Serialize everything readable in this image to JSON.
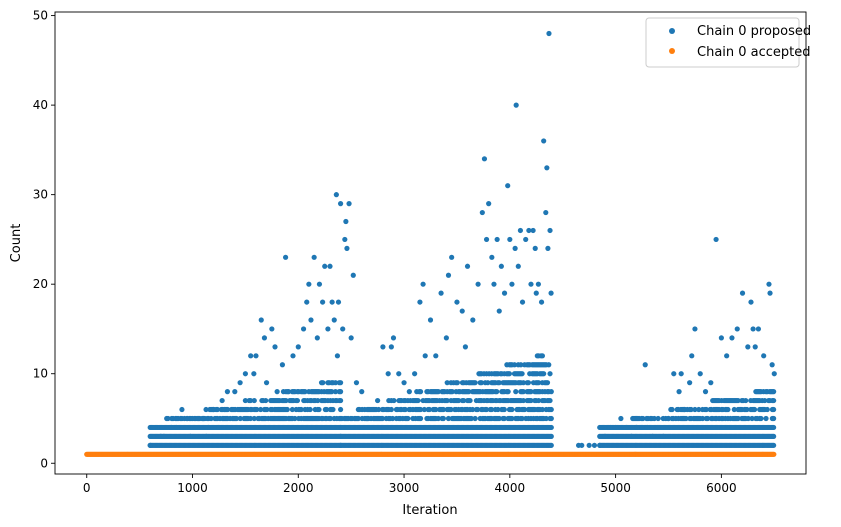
{
  "chart_data": {
    "type": "scatter",
    "xlabel": "Iteration",
    "ylabel": "Count",
    "xlim": [
      -300,
      6800
    ],
    "ylim": [
      -1.2,
      50.4
    ],
    "xticks": [
      0,
      1000,
      2000,
      3000,
      4000,
      5000,
      6000
    ],
    "yticks": [
      0,
      10,
      20,
      30,
      40,
      50
    ],
    "grid": false,
    "legend_position": "top-right",
    "series": [
      {
        "name": "Chain 0 proposed",
        "color": "#1f77b4",
        "points": [
          [
            600,
            2
          ],
          [
            700,
            3
          ],
          [
            730,
            3
          ],
          [
            800,
            4
          ],
          [
            850,
            4
          ],
          [
            900,
            6
          ],
          [
            950,
            5
          ],
          [
            980,
            3
          ],
          [
            1000,
            5
          ],
          [
            1050,
            5
          ],
          [
            1100,
            5
          ],
          [
            1130,
            3
          ],
          [
            1150,
            4
          ],
          [
            1200,
            6
          ],
          [
            1250,
            4
          ],
          [
            1280,
            7
          ],
          [
            1300,
            6
          ],
          [
            1330,
            8
          ],
          [
            1400,
            8
          ],
          [
            1450,
            9
          ],
          [
            1500,
            10
          ],
          [
            1550,
            12
          ],
          [
            1580,
            10
          ],
          [
            1600,
            12
          ],
          [
            1650,
            16
          ],
          [
            1680,
            14
          ],
          [
            1700,
            9
          ],
          [
            1750,
            15
          ],
          [
            1780,
            13
          ],
          [
            1800,
            8
          ],
          [
            1850,
            11
          ],
          [
            1880,
            23
          ],
          [
            1900,
            8
          ],
          [
            1950,
            12
          ],
          [
            2000,
            13
          ],
          [
            2050,
            15
          ],
          [
            2080,
            18
          ],
          [
            2100,
            20
          ],
          [
            2120,
            16
          ],
          [
            2150,
            23
          ],
          [
            2180,
            14
          ],
          [
            2200,
            20
          ],
          [
            2230,
            18
          ],
          [
            2250,
            22
          ],
          [
            2280,
            15
          ],
          [
            2300,
            22
          ],
          [
            2320,
            18
          ],
          [
            2340,
            16
          ],
          [
            2360,
            30
          ],
          [
            2370,
            12
          ],
          [
            2380,
            18
          ],
          [
            2400,
            29
          ],
          [
            2420,
            15
          ],
          [
            2440,
            25
          ],
          [
            2450,
            27
          ],
          [
            2460,
            24
          ],
          [
            2480,
            29
          ],
          [
            2500,
            14
          ],
          [
            2520,
            21
          ],
          [
            2550,
            9
          ],
          [
            2600,
            8
          ],
          [
            2650,
            5
          ],
          [
            2700,
            6
          ],
          [
            2750,
            7
          ],
          [
            2800,
            13
          ],
          [
            2850,
            10
          ],
          [
            2880,
            13
          ],
          [
            2900,
            14
          ],
          [
            2950,
            10
          ],
          [
            3000,
            9
          ],
          [
            3050,
            8
          ],
          [
            3100,
            10
          ],
          [
            3150,
            18
          ],
          [
            3180,
            20
          ],
          [
            3200,
            12
          ],
          [
            3250,
            16
          ],
          [
            3300,
            12
          ],
          [
            3350,
            19
          ],
          [
            3400,
            14
          ],
          [
            3420,
            21
          ],
          [
            3450,
            23
          ],
          [
            3500,
            18
          ],
          [
            3550,
            17
          ],
          [
            3580,
            13
          ],
          [
            3600,
            22
          ],
          [
            3650,
            16
          ],
          [
            3700,
            20
          ],
          [
            3740,
            28
          ],
          [
            3760,
            34
          ],
          [
            3780,
            25
          ],
          [
            3800,
            29
          ],
          [
            3830,
            23
          ],
          [
            3850,
            20
          ],
          [
            3880,
            25
          ],
          [
            3900,
            17
          ],
          [
            3920,
            22
          ],
          [
            3950,
            19
          ],
          [
            3980,
            31
          ],
          [
            4000,
            25
          ],
          [
            4020,
            20
          ],
          [
            4050,
            24
          ],
          [
            4060,
            40
          ],
          [
            4080,
            22
          ],
          [
            4100,
            26
          ],
          [
            4120,
            18
          ],
          [
            4150,
            25
          ],
          [
            4180,
            26
          ],
          [
            4200,
            20
          ],
          [
            4220,
            26
          ],
          [
            4240,
            24
          ],
          [
            4250,
            19
          ],
          [
            4270,
            20
          ],
          [
            4300,
            18
          ],
          [
            4320,
            36
          ],
          [
            4340,
            28
          ],
          [
            4350,
            33
          ],
          [
            4360,
            24
          ],
          [
            4370,
            48
          ],
          [
            4380,
            26
          ],
          [
            4390,
            19
          ],
          [
            4650,
            2
          ],
          [
            4680,
            2
          ],
          [
            4750,
            2
          ],
          [
            4800,
            2
          ],
          [
            4850,
            2
          ],
          [
            4900,
            3
          ],
          [
            4950,
            4
          ],
          [
            5000,
            4
          ],
          [
            5050,
            5
          ],
          [
            5100,
            4
          ],
          [
            5150,
            3
          ],
          [
            5200,
            4
          ],
          [
            5250,
            4
          ],
          [
            5280,
            11
          ],
          [
            5300,
            4
          ],
          [
            5350,
            3
          ],
          [
            5400,
            4
          ],
          [
            5450,
            3
          ],
          [
            5500,
            5
          ],
          [
            5550,
            10
          ],
          [
            5600,
            8
          ],
          [
            5620,
            10
          ],
          [
            5650,
            6
          ],
          [
            5700,
            9
          ],
          [
            5720,
            12
          ],
          [
            5750,
            15
          ],
          [
            5800,
            10
          ],
          [
            5850,
            8
          ],
          [
            5900,
            9
          ],
          [
            5950,
            25
          ],
          [
            6000,
            14
          ],
          [
            6050,
            12
          ],
          [
            6100,
            14
          ],
          [
            6150,
            15
          ],
          [
            6200,
            19
          ],
          [
            6250,
            13
          ],
          [
            6280,
            18
          ],
          [
            6300,
            15
          ],
          [
            6320,
            13
          ],
          [
            6350,
            15
          ],
          [
            6400,
            12
          ],
          [
            6450,
            20
          ],
          [
            6460,
            19
          ],
          [
            6480,
            11
          ],
          [
            6500,
            10
          ]
        ]
      },
      {
        "name": "Chain 0 accepted",
        "color": "#ff7f0e"
      }
    ]
  }
}
